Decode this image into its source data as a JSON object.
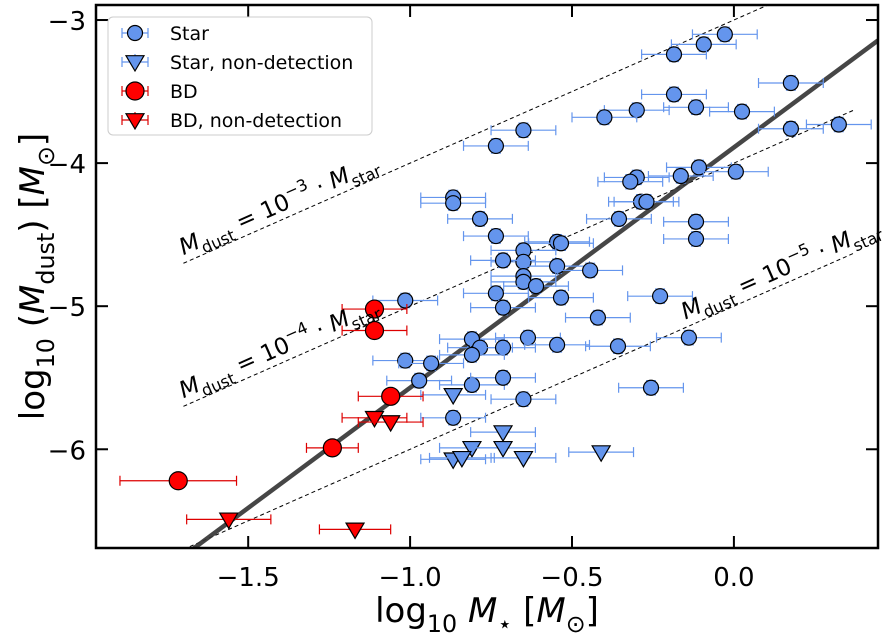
{
  "chart_data": {
    "type": "scatter",
    "xlabel": {
      "parts": [
        "log",
        "10",
        " ",
        "M",
        "⋆",
        " [",
        "M",
        "⊙",
        "]"
      ]
    },
    "ylabel": {
      "parts": [
        "log",
        "10",
        " (",
        "M",
        "dust",
        ") [",
        "M",
        "⊙",
        "]"
      ]
    },
    "xlim": [
      -1.97,
      0.445
    ],
    "ylim": [
      -6.69,
      -2.895
    ],
    "xticks": [
      {
        "value": -1.5,
        "label": "−1.5"
      },
      {
        "value": -1.0,
        "label": "−1.0"
      },
      {
        "value": -0.5,
        "label": "−0.5"
      },
      {
        "value": 0.0,
        "label": "0.0"
      }
    ],
    "yticks": [
      {
        "value": -3,
        "label": "−3"
      },
      {
        "value": -4,
        "label": "−4"
      },
      {
        "value": -5,
        "label": "−5"
      },
      {
        "value": -6,
        "label": "−6"
      }
    ],
    "legend": "upper left",
    "fit": {
      "slope": 1.68,
      "intercept": -3.89,
      "color": "#333333"
    },
    "ratio_lines": [
      {
        "offset": -3,
        "xrange": [
          -1.7,
          0.37
        ],
        "annotation": {
          "parts": [
            "M",
            "dust",
            " = 10",
            "−3",
            " · ",
            "M",
            "star"
          ]
        }
      },
      {
        "offset": -4,
        "xrange": [
          -1.7,
          0.37
        ],
        "annotation": {
          "parts": [
            "M",
            "dust",
            " = 10",
            "−4",
            " · ",
            "M",
            "star"
          ]
        }
      },
      {
        "offset": -5,
        "xrange": [
          -1.7,
          0.37
        ],
        "annotation": {
          "parts": [
            "M",
            "dust",
            " = 10",
            "−5",
            " · ",
            "M",
            "star"
          ]
        }
      }
    ],
    "series": [
      {
        "name": "Star",
        "color": "#6495ed",
        "errcolor": "#6495ed",
        "marker": "o",
        "x": [
          -0.028,
          -0.093,
          -0.185,
          0.176,
          -0.185,
          -0.3,
          -0.117,
          0.025,
          -0.4,
          -0.65,
          0.176,
          0.324,
          -0.735,
          -0.108,
          0.006,
          -0.3,
          -0.164,
          -0.32,
          -0.287,
          -0.27,
          -0.867,
          -0.867,
          -0.784,
          -0.355,
          -0.117,
          -0.735,
          -0.117,
          -0.546,
          -0.534,
          -0.65,
          -0.65,
          -0.713,
          -0.546,
          -0.444,
          -0.65,
          -0.65,
          -0.611,
          -0.735,
          -0.228,
          -0.534,
          -1.015,
          -0.713,
          -0.42,
          -0.636,
          -0.139,
          -0.809,
          -0.784,
          -0.713,
          -0.546,
          -0.358,
          -0.809,
          -1.015,
          -0.935,
          -0.972,
          -0.809,
          -0.713,
          -0.256,
          -0.65,
          -0.867
        ],
        "y": [
          -3.1,
          -3.17,
          -3.24,
          -3.44,
          -3.52,
          -3.63,
          -3.61,
          -3.64,
          -3.68,
          -3.77,
          -3.76,
          -3.73,
          -3.88,
          -4.03,
          -4.06,
          -4.1,
          -4.09,
          -4.13,
          -4.27,
          -4.27,
          -4.24,
          -4.28,
          -4.39,
          -4.39,
          -4.41,
          -4.51,
          -4.53,
          -4.55,
          -4.56,
          -4.61,
          -4.69,
          -4.68,
          -4.72,
          -4.75,
          -4.79,
          -4.83,
          -4.86,
          -4.91,
          -4.93,
          -4.94,
          -4.96,
          -5.01,
          -5.08,
          -5.22,
          -5.22,
          -5.23,
          -5.29,
          -5.29,
          -5.27,
          -5.28,
          -5.34,
          -5.38,
          -5.4,
          -5.52,
          -5.55,
          -5.5,
          -5.57,
          -5.65,
          -5.78
        ],
        "xerr": 0.1,
        "yerr": 0.05
      },
      {
        "name": "Star, non-detection",
        "color": "#6495ed",
        "errcolor": "#6495ed",
        "marker": "v",
        "x": [
          -0.867,
          -0.713,
          -0.809,
          -0.713,
          -0.867,
          -0.84,
          -0.65,
          -0.41
        ],
        "y": [
          -5.62,
          -5.88,
          -5.99,
          -5.99,
          -6.07,
          -6.06,
          -6.06,
          -6.02
        ],
        "xerr": 0.1
      },
      {
        "name": "BD",
        "color": "#ff0000",
        "errcolor": "#dd0000",
        "marker": "o",
        "x": [
          -1.11,
          -1.11,
          -1.06,
          -1.24,
          -1.716
        ],
        "y": [
          -5.02,
          -5.17,
          -5.63,
          -5.99,
          -6.22
        ],
        "xerr": [
          0.1,
          0.1,
          0.1,
          0.08,
          0.18
        ],
        "yerr": 0.05
      },
      {
        "name": "BD, non-detection",
        "color": "#ff0000",
        "errcolor": "#dd0000",
        "marker": "v",
        "x": [
          -1.11,
          -1.06,
          -1.56,
          -1.17
        ],
        "y": [
          -5.78,
          -5.81,
          -6.49,
          -6.56
        ],
        "xerr": [
          0.1,
          0.1,
          0.13,
          0.11
        ]
      }
    ]
  }
}
